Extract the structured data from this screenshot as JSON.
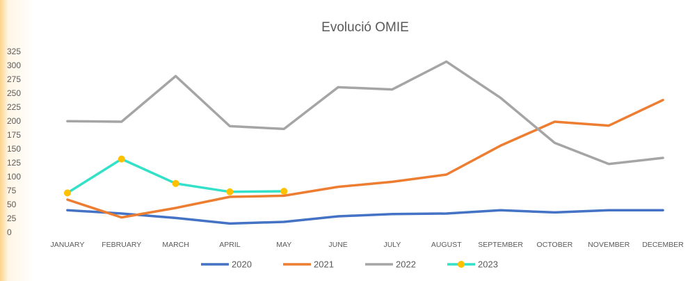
{
  "chart_data": {
    "type": "line",
    "title": "Evolució OMIE",
    "categories": [
      "JANUARY",
      "FEBRUARY",
      "MARCH",
      "APRIL",
      "MAY",
      "JUNE",
      "JULY",
      "AUGUST",
      "SEPTEMBER",
      "OCTOBER",
      "NOVEMBER",
      "DECEMBER"
    ],
    "series": [
      {
        "name": "2020",
        "color": "#4472c4",
        "values": [
          41,
          35,
          27,
          17,
          20,
          30,
          34,
          35,
          41,
          37,
          41,
          41
        ]
      },
      {
        "name": "2021",
        "color": "#ed7d31",
        "values": [
          60,
          28,
          45,
          65,
          67,
          83,
          92,
          105,
          157,
          200,
          193,
          239
        ]
      },
      {
        "name": "2022",
        "color": "#a5a5a5",
        "values": [
          201,
          200,
          282,
          192,
          187,
          262,
          258,
          308,
          243,
          162,
          124,
          135
        ]
      },
      {
        "name": "2023",
        "color": "#33e0c8",
        "marker_color": "#ffc000",
        "values": [
          72,
          133,
          89,
          74,
          75,
          null,
          null,
          null,
          null,
          null,
          null,
          null
        ]
      }
    ],
    "ylim": [
      0,
      325
    ],
    "yticks": [
      0,
      25,
      50,
      75,
      100,
      125,
      150,
      175,
      200,
      225,
      250,
      275,
      300,
      325
    ],
    "grid": false,
    "legend": "bottom"
  }
}
